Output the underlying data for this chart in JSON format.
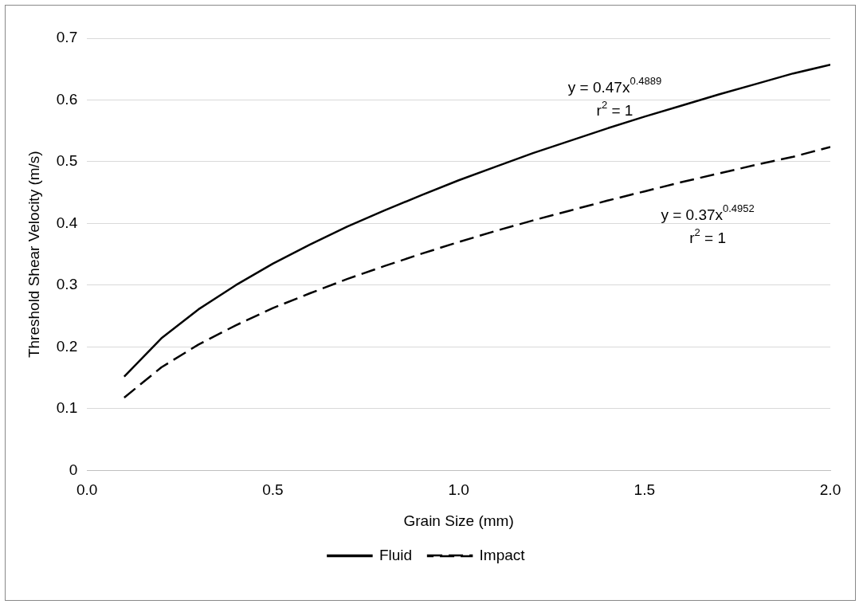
{
  "chart_data": {
    "type": "line",
    "xlabel": "Grain Size (mm)",
    "ylabel": "Threshold Shear Velocity (m/s)",
    "x": [
      0.1,
      0.2,
      0.3,
      0.4,
      0.5,
      0.6,
      0.7,
      0.8,
      0.9,
      1.0,
      1.1,
      1.2,
      1.3,
      1.4,
      1.5,
      1.6,
      1.7,
      1.8,
      1.9,
      2.0
    ],
    "series": [
      {
        "name": "Fluid",
        "color": "#000000",
        "line_style": "solid",
        "values": [
          0.152,
          0.214,
          0.261,
          0.3,
          0.335,
          0.366,
          0.395,
          0.421,
          0.446,
          0.47,
          0.492,
          0.514,
          0.534,
          0.554,
          0.573,
          0.591,
          0.609,
          0.626,
          0.643,
          0.657
        ]
      },
      {
        "name": "Impact",
        "color": "#000000",
        "line_style": "dashed",
        "values": [
          0.118,
          0.167,
          0.204,
          0.235,
          0.263,
          0.287,
          0.31,
          0.331,
          0.351,
          0.37,
          0.388,
          0.405,
          0.421,
          0.437,
          0.452,
          0.467,
          0.481,
          0.495,
          0.508,
          0.524
        ]
      }
    ],
    "xlim": [
      0,
      2
    ],
    "xticks": [
      {
        "value": 0,
        "label": "0.0"
      },
      {
        "value": 0.5,
        "label": "0.5"
      },
      {
        "value": 1,
        "label": "1.0"
      },
      {
        "value": 1.5,
        "label": "1.5"
      },
      {
        "value": 2,
        "label": "2.0"
      }
    ],
    "ylim": [
      0,
      0.7
    ],
    "yticks": [
      0,
      0.1,
      0.2,
      0.3,
      0.4,
      0.5,
      0.6,
      0.7
    ],
    "grid": "y",
    "legend": "bottom",
    "marker": "none",
    "annotations": [
      "y = 0.47x$^{0.4889}$",
      "r$^{2}$ = 1",
      "y = 0.37x$^{0.4952}$",
      "r$^{2}$ = 1"
    ]
  }
}
